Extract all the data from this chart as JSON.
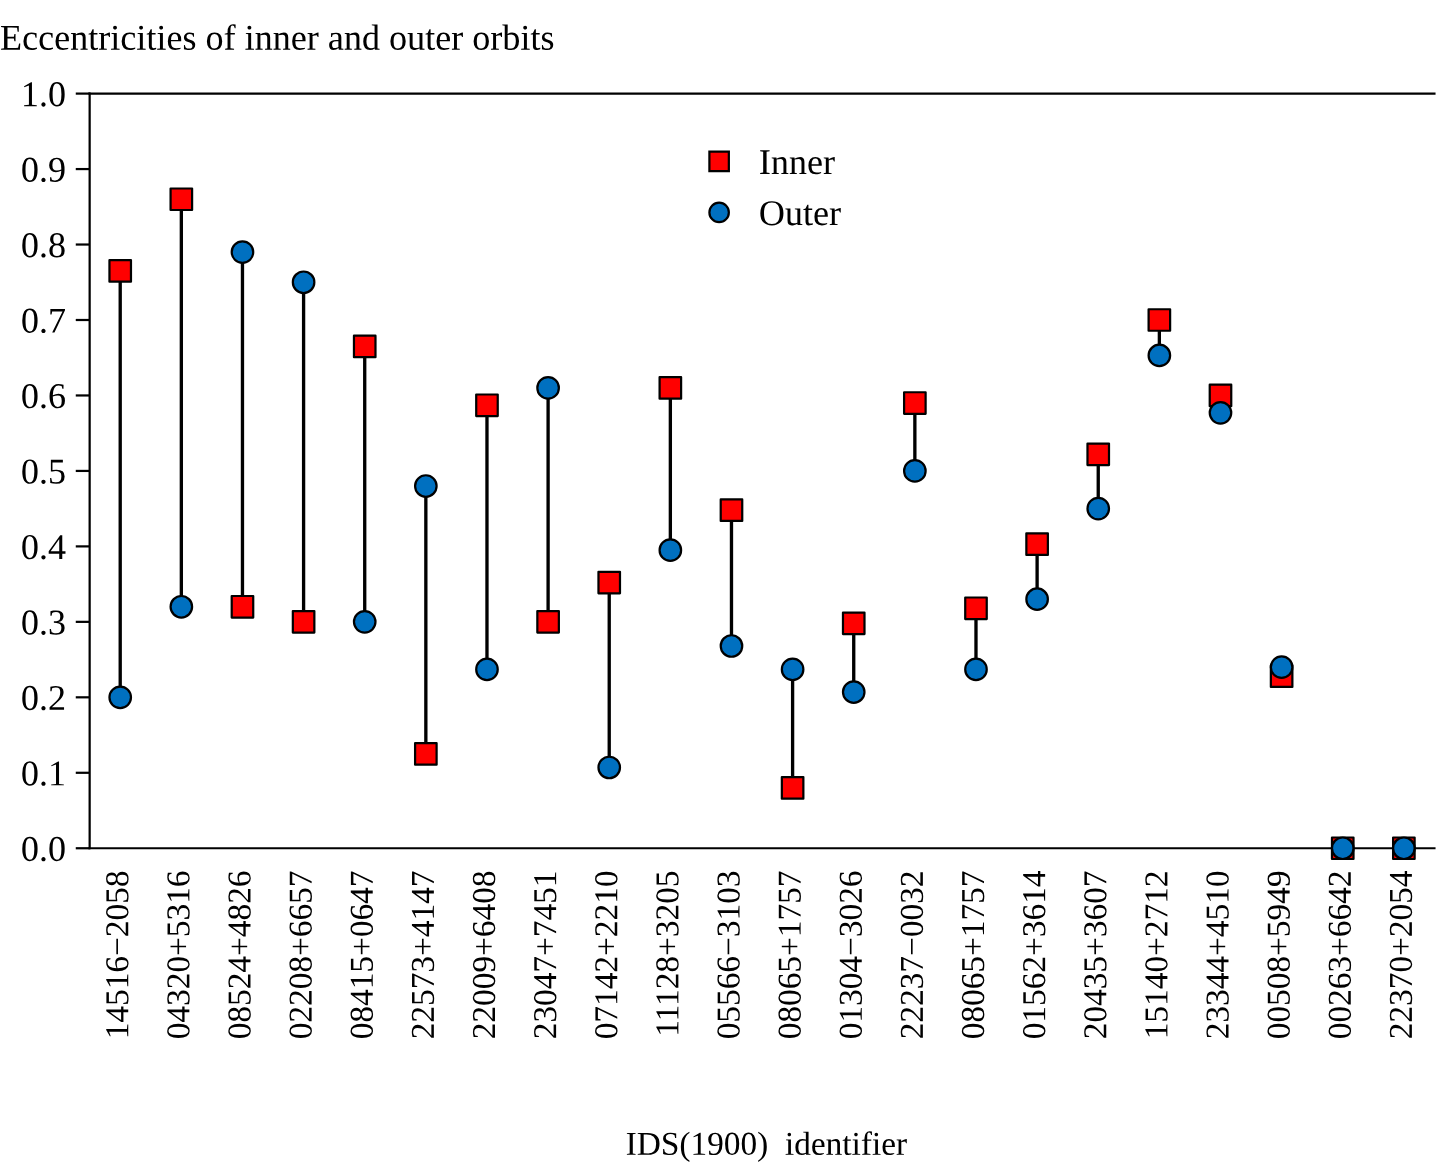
{
  "chart_data": {
    "type": "scatter",
    "title": "Eccentricities of inner and outer orbits",
    "xlabel": "IDS(1900)  identifier",
    "categories": [
      "14516−2058",
      "04320+5316",
      "08524+4826",
      "02208+6657",
      "08415+0647",
      "22573+4147",
      "22009+6408",
      "23047+7451",
      "07142+2210",
      "11128+3205",
      "05566−3103",
      "08065+1757",
      "01304−3026",
      "22237−0032",
      "08065+1757",
      "01562+3614",
      "20435+3607",
      "15140+2712",
      "23344+4510",
      "00508+5949",
      "00263+6642",
      "22370+2054"
    ],
    "series": [
      {
        "name": "Inner",
        "color": "#ff0000",
        "marker": "square",
        "values": [
          0.765,
          0.86,
          0.32,
          0.3,
          0.665,
          0.125,
          0.587,
          0.3,
          0.352,
          0.61,
          0.448,
          0.08,
          0.298,
          0.59,
          0.318,
          0.403,
          0.522,
          0.7,
          0.6,
          0.228,
          0,
          0
        ]
      },
      {
        "name": "Outer",
        "color": "#0070c0",
        "marker": "circle",
        "values": [
          0.2,
          0.32,
          0.79,
          0.75,
          0.3,
          0.48,
          0.237,
          0.61,
          0.107,
          0.395,
          0.268,
          0.237,
          0.207,
          0.5,
          0.237,
          0.33,
          0.45,
          0.653,
          0.577,
          0.24,
          0,
          0
        ]
      }
    ],
    "ylim": [
      0,
      1
    ],
    "yticks": [
      {
        "value": 0,
        "label": "0.0"
      },
      0.1,
      0.2,
      0.3,
      0.4,
      0.5,
      0.6,
      0.7,
      0.8,
      0.9,
      {
        "value": 1,
        "label": "1.0"
      }
    ],
    "grid": false,
    "legend": "top"
  }
}
